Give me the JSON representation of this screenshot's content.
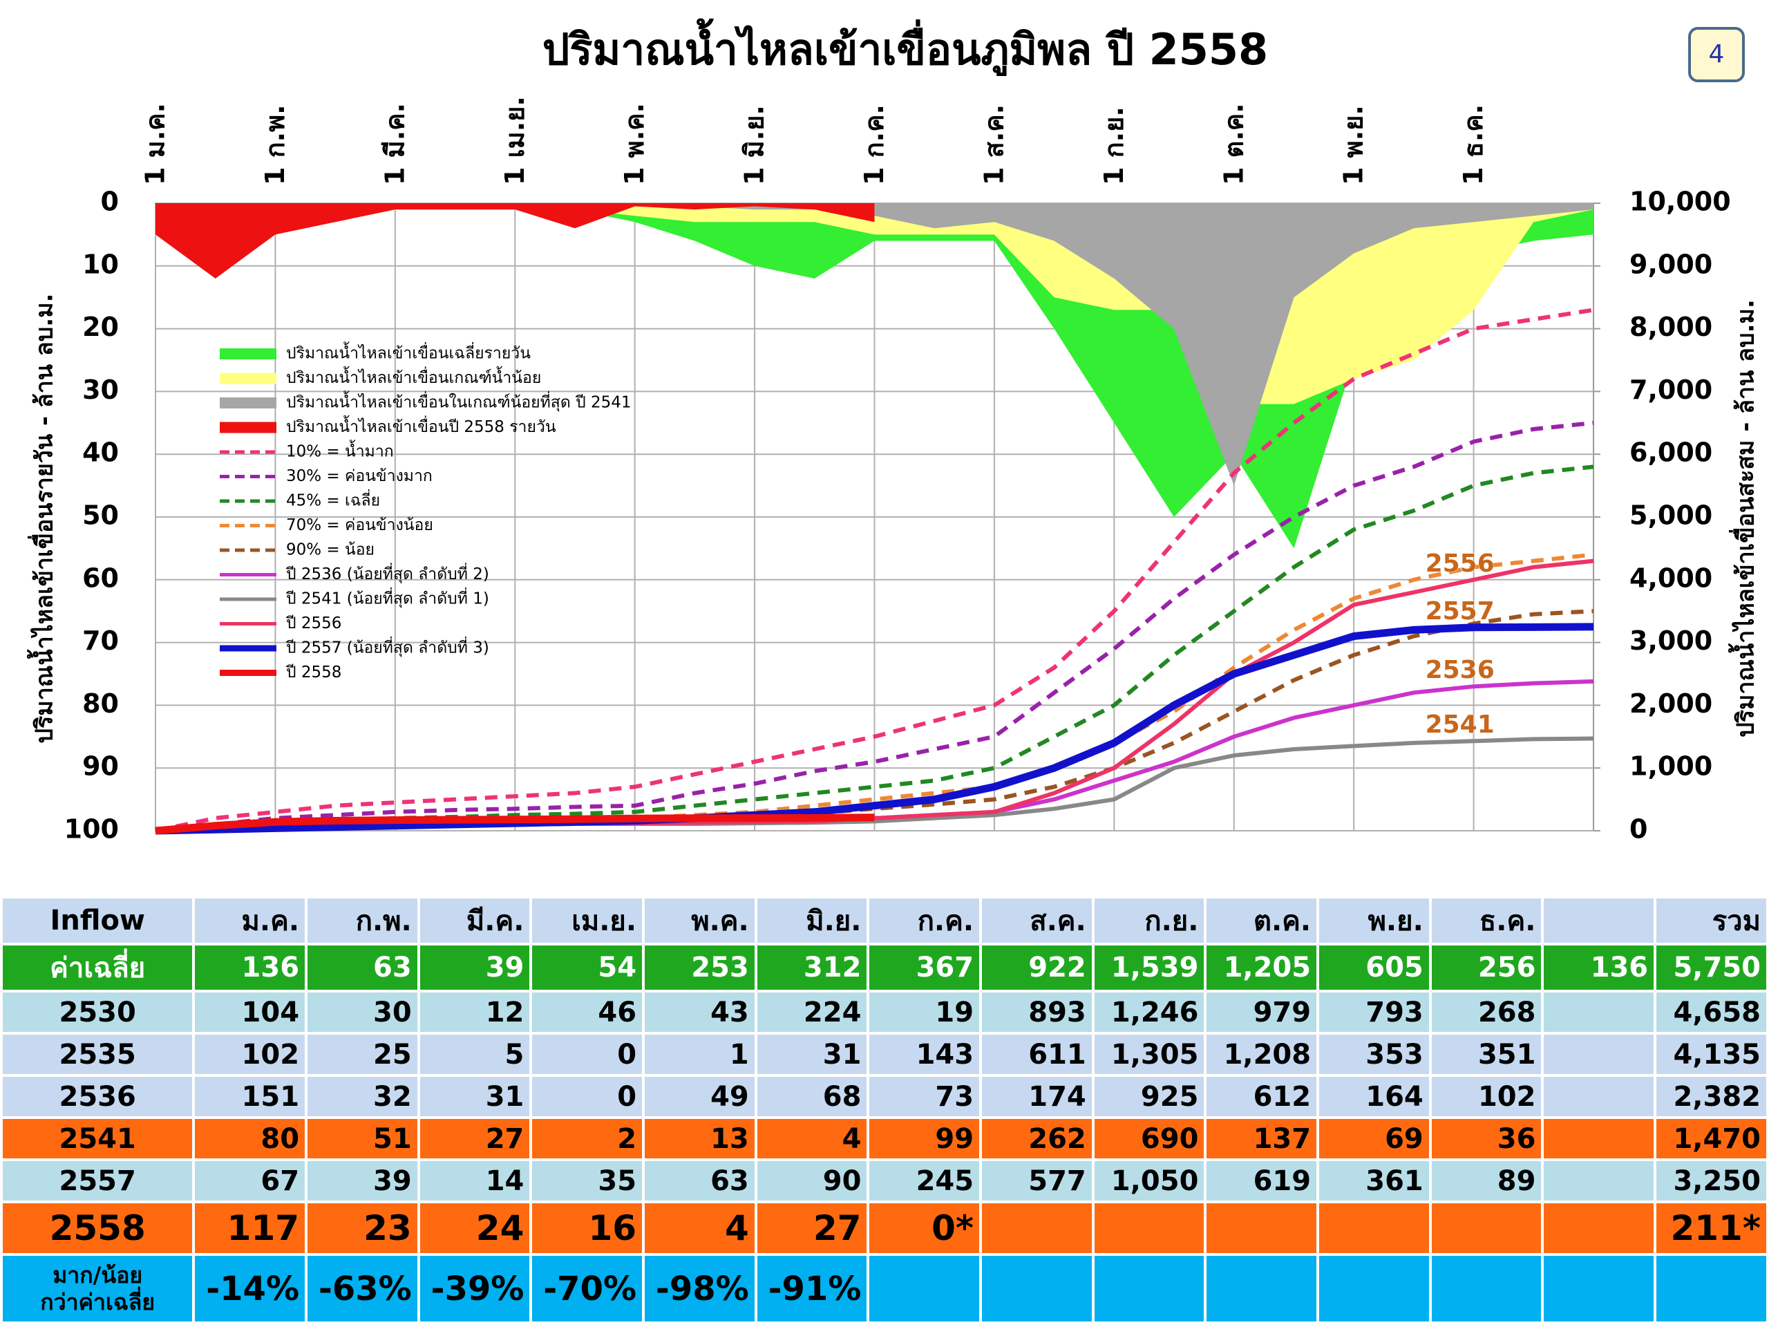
{
  "page_number": "4",
  "chart_data": {
    "type": "line",
    "title": "ปริมาณน้ำไหลเข้าเขื่อนภูมิพล ปี 2558",
    "y_label": "ปริมาณน้ำไหลเข้าเขื่อนรายวัน - ล้าน ลบ.ม.",
    "y2_label": "ปริมาณน้ำไหลเข้าเขื่อนสะสม - ล้าน ลบ.ม.",
    "categories": [
      "1 ม.ค.",
      null,
      "1 ก.พ.",
      null,
      "1 มี.ค.",
      null,
      "1 เม.ย.",
      null,
      "1 พ.ค.",
      null,
      "1 มิ.ย.",
      null,
      "1 ก.ค.",
      null,
      "1 ส.ค.",
      null,
      "1 ก.ย.",
      null,
      "1 ต.ค.",
      null,
      "1 พ.ย.",
      null,
      "1 ธ.ค.",
      null,
      null
    ],
    "ylim": [
      100,
      0
    ],
    "yticks": [
      0,
      10,
      20,
      30,
      40,
      50,
      60,
      70,
      80,
      90,
      100
    ],
    "y2lim": [
      0,
      10000
    ],
    "y2ticks": [
      0,
      {
        "value": 1000,
        "label": "1,000"
      },
      {
        "value": 2000,
        "label": "2,000"
      },
      {
        "value": 3000,
        "label": "3,000"
      },
      {
        "value": 4000,
        "label": "4,000"
      },
      {
        "value": 5000,
        "label": "5,000"
      },
      {
        "value": 6000,
        "label": "6,000"
      },
      {
        "value": 7000,
        "label": "7,000"
      },
      {
        "value": 8000,
        "label": "8,000"
      },
      {
        "value": 9000,
        "label": "9,000"
      },
      {
        "value": 10000,
        "label": "10,000"
      }
    ],
    "grid": true,
    "legend": "upper left",
    "series": [
      {
        "name": "ปริมาณน้ำไหลเข้าเขื่อนเฉลี่ยรายวัน",
        "style": "area",
        "color": "#33ee33",
        "values": [
          5,
          4,
          3,
          3,
          1,
          1,
          1,
          1,
          3,
          6,
          10,
          12,
          6,
          6,
          6,
          20,
          35,
          50,
          40,
          55,
          25,
          18,
          8,
          6,
          5
        ]
      },
      {
        "name": "ปริมาณน้ำไหลเข้าเขื่อนเกณฑ์น้ำน้อย",
        "style": "area",
        "color": "#ffff80",
        "values": [
          1,
          1,
          1,
          1,
          1,
          1,
          1,
          1,
          2,
          3,
          3,
          3,
          5,
          5,
          5,
          15,
          17,
          17,
          32,
          32,
          28,
          25,
          17,
          3,
          1
        ]
      },
      {
        "name": "ปริมาณน้ำไหลเข้าเขื่อนในเกณฑ์น้อยที่สุด ปี 2541",
        "style": "area",
        "color": "#a6a6a6",
        "values": [
          0.5,
          1,
          1,
          1,
          0.5,
          0.5,
          0.5,
          0.5,
          0.5,
          0.5,
          1,
          1,
          2,
          4,
          3,
          6,
          12,
          20,
          45,
          15,
          8,
          4,
          3,
          2,
          1
        ]
      },
      {
        "name": "ปริมาณน้ำไหลเข้าเขื่อนปี 2558 รายวัน",
        "style": "area",
        "color": "#ee1111",
        "values": [
          5,
          12,
          5,
          3,
          1,
          1,
          1,
          4,
          0.5,
          1,
          0.5,
          1,
          3,
          null,
          null,
          null,
          null,
          null,
          null,
          null,
          null,
          null,
          null,
          null,
          null
        ]
      },
      {
        "name": "10% = น้ำมาก",
        "style": "dashed",
        "axis": "y2",
        "color": "#ee3377",
        "values": [
          0,
          200,
          300,
          400,
          450,
          500,
          550,
          600,
          700,
          900,
          1100,
          1300,
          1500,
          1750,
          2000,
          2600,
          3500,
          4600,
          5700,
          6500,
          7200,
          7600,
          8000,
          8150,
          8300
        ]
      },
      {
        "name": "30% = ค่อนข้างมาก",
        "style": "dashed",
        "axis": "y2",
        "color": "#9922aa",
        "values": [
          0,
          100,
          200,
          250,
          300,
          330,
          350,
          380,
          400,
          600,
          750,
          950,
          1100,
          1300,
          1500,
          2200,
          2900,
          3700,
          4400,
          5000,
          5500,
          5800,
          6200,
          6400,
          6500
        ]
      },
      {
        "name": "45% = เฉลี่ย",
        "style": "dashed",
        "axis": "y2",
        "color": "#228822",
        "values": [
          0,
          50,
          100,
          150,
          200,
          220,
          250,
          270,
          300,
          400,
          500,
          600,
          700,
          800,
          1000,
          1500,
          2000,
          2800,
          3500,
          4200,
          4800,
          5100,
          5500,
          5700,
          5800
        ]
      },
      {
        "name": "70% = ค่อนข้างน้อย",
        "style": "dashed",
        "axis": "y2",
        "color": "#ee8833",
        "values": [
          0,
          30,
          60,
          80,
          100,
          120,
          150,
          170,
          200,
          250,
          300,
          400,
          500,
          600,
          700,
          1000,
          1400,
          1900,
          2600,
          3200,
          3700,
          4000,
          4200,
          4300,
          4400
        ]
      },
      {
        "name": "90% = น้อย",
        "style": "dashed",
        "axis": "y2",
        "color": "#995522",
        "values": [
          0,
          20,
          40,
          60,
          80,
          90,
          100,
          110,
          120,
          160,
          200,
          280,
          350,
          420,
          500,
          700,
          1000,
          1400,
          1900,
          2400,
          2800,
          3100,
          3300,
          3450,
          3500
        ]
      },
      {
        "name": "ปี 2536 (น้อยที่สุด ลำดับที่ 2)",
        "label": "2536",
        "style": "solid",
        "axis": "y2",
        "color": "#cc33cc",
        "values": [
          0,
          20,
          40,
          60,
          80,
          90,
          100,
          110,
          110,
          120,
          130,
          150,
          200,
          250,
          300,
          500,
          800,
          1100,
          1500,
          1800,
          2000,
          2200,
          2300,
          2350,
          2380
        ]
      },
      {
        "name": "ปี 2541 (น้อยที่สุด ลำดับที่ 1)",
        "label": "2541",
        "style": "solid",
        "axis": "y2",
        "color": "#888888",
        "values": [
          0,
          20,
          40,
          60,
          80,
          90,
          100,
          110,
          110,
          110,
          120,
          130,
          150,
          200,
          250,
          350,
          500,
          1000,
          1200,
          1300,
          1350,
          1400,
          1430,
          1460,
          1470
        ]
      },
      {
        "name": "ปี 2556",
        "label": "2556",
        "style": "solid",
        "axis": "y2",
        "color": "#ee3366",
        "values": [
          0,
          20,
          40,
          60,
          80,
          90,
          100,
          110,
          120,
          130,
          140,
          150,
          200,
          250,
          300,
          600,
          1000,
          1700,
          2500,
          3000,
          3600,
          3800,
          4000,
          4200,
          4300
        ]
      },
      {
        "name": "ปี 2557 (น้อยที่สุด ลำดับที่ 3)",
        "label": "2557",
        "style": "bold",
        "axis": "y2",
        "color": "#1111cc",
        "values": [
          0,
          20,
          40,
          60,
          80,
          100,
          120,
          140,
          160,
          200,
          250,
          300,
          400,
          500,
          700,
          1000,
          1400,
          2000,
          2500,
          2800,
          3100,
          3200,
          3240,
          3245,
          3250
        ]
      },
      {
        "name": "ปี 2558",
        "style": "bold",
        "axis": "y2",
        "color": "#ee1111",
        "values": [
          0,
          80,
          140,
          160,
          170,
          175,
          180,
          185,
          195,
          200,
          203,
          205,
          211,
          null,
          null,
          null,
          null,
          null,
          null,
          null,
          null,
          null,
          null,
          null,
          null
        ]
      }
    ]
  },
  "table": {
    "header": [
      "Inflow",
      "ม.ค.",
      "ก.พ.",
      "มี.ค.",
      "เม.ย.",
      "พ.ค.",
      "มิ.ย.",
      "ก.ค.",
      "ส.ค.",
      "ก.ย.",
      "ต.ค.",
      "พ.ย.",
      "ธ.ค.",
      null,
      "รวม"
    ],
    "rows": [
      {
        "label": "ค่าเฉลี่ย",
        "cells": [
          "136",
          "63",
          "39",
          "54",
          "253",
          "312",
          "367",
          "922",
          "1,539",
          "1,205",
          "605",
          "256",
          "136",
          "5,750"
        ]
      },
      {
        "label": "2530",
        "cells": [
          "104",
          "30",
          "12",
          "46",
          "43",
          "224",
          "19",
          "893",
          "1,246",
          "979",
          "793",
          "268",
          null,
          "4,658"
        ]
      },
      {
        "label": "2535",
        "cells": [
          "102",
          "25",
          "5",
          "0",
          "1",
          "31",
          "143",
          "611",
          "1,305",
          "1,208",
          "353",
          "351",
          null,
          "4,135"
        ]
      },
      {
        "label": "2536",
        "cells": [
          "151",
          "32",
          "31",
          "0",
          "49",
          "68",
          "73",
          "174",
          "925",
          "612",
          "164",
          "102",
          null,
          "2,382"
        ]
      },
      {
        "label": "2541",
        "cells": [
          "80",
          "51",
          "27",
          "2",
          "13",
          "4",
          "99",
          "262",
          "690",
          "137",
          "69",
          "36",
          null,
          "1,470"
        ]
      },
      {
        "label": "2557",
        "cells": [
          "67",
          "39",
          "14",
          "35",
          "63",
          "90",
          "245",
          "577",
          "1,050",
          "619",
          "361",
          "89",
          null,
          "3,250"
        ]
      },
      {
        "label": "2558",
        "cells": [
          "117",
          "23",
          "24",
          "16",
          "4",
          "27",
          "0*",
          null,
          null,
          null,
          null,
          null,
          null,
          "211*"
        ]
      },
      {
        "label": "มาก/น้อย\nกว่าค่าเฉลี่ย",
        "cells": [
          "-14%",
          "-63%",
          "-39%",
          "-70%",
          "-98%",
          "-91%",
          null,
          null,
          null,
          null,
          null,
          null,
          null,
          null
        ]
      }
    ]
  }
}
